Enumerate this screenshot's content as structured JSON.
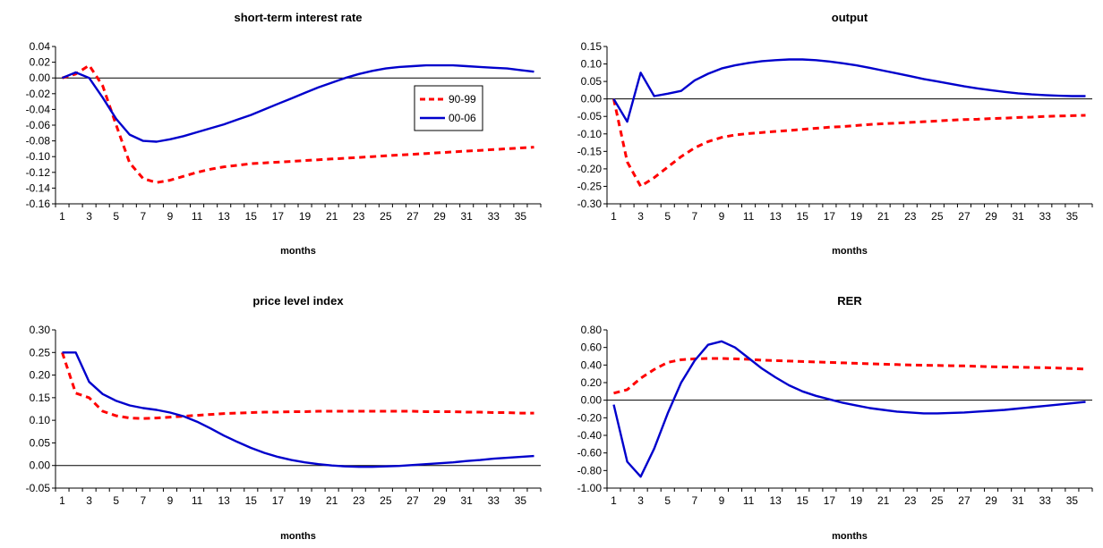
{
  "colors": {
    "s9099": "#ff0000",
    "s0006": "#0000cc"
  },
  "legend": {
    "items": [
      "90-99",
      "00-06"
    ]
  },
  "chart_data": [
    {
      "type": "line",
      "title": "short-term interest rate",
      "xlabel": "months",
      "ylabel": "",
      "ylim": [
        -0.16,
        0.04
      ],
      "yticks": [
        "0.04",
        "0.02",
        "0.00",
        "-0.02",
        "-0.04",
        "-0.06",
        "-0.08",
        "-0.10",
        "-0.12",
        "-0.14",
        "-0.16"
      ],
      "xticks": [
        "1",
        "3",
        "5",
        "7",
        "9",
        "11",
        "13",
        "15",
        "17",
        "19",
        "21",
        "23",
        "25",
        "27",
        "29",
        "31",
        "33",
        "35"
      ],
      "legend_position": "upper-right",
      "series": [
        {
          "name": "90-99",
          "style": "dashed",
          "values": [
            0.0,
            0.005,
            0.016,
            -0.01,
            -0.06,
            -0.108,
            -0.128,
            -0.133,
            -0.13,
            -0.125,
            -0.12,
            -0.116,
            -0.113,
            -0.111,
            -0.109,
            -0.108,
            -0.107,
            -0.106,
            -0.105,
            -0.104,
            -0.103,
            -0.102,
            -0.101,
            -0.1,
            -0.099,
            -0.098,
            -0.097,
            -0.096,
            -0.095,
            -0.094,
            -0.093,
            -0.092,
            -0.091,
            -0.09,
            -0.089,
            -0.088
          ]
        },
        {
          "name": "00-06",
          "style": "solid",
          "values": [
            0.0,
            0.007,
            0.0,
            -0.025,
            -0.052,
            -0.072,
            -0.08,
            -0.081,
            -0.078,
            -0.074,
            -0.069,
            -0.064,
            -0.059,
            -0.053,
            -0.047,
            -0.04,
            -0.033,
            -0.026,
            -0.019,
            -0.012,
            -0.006,
            0.0,
            0.005,
            0.009,
            0.012,
            0.014,
            0.015,
            0.016,
            0.016,
            0.016,
            0.015,
            0.014,
            0.013,
            0.012,
            0.01,
            0.008
          ]
        }
      ]
    },
    {
      "type": "line",
      "title": "output",
      "xlabel": "months",
      "ylabel": "",
      "ylim": [
        -0.3,
        0.15
      ],
      "yticks": [
        "0.15",
        "0.10",
        "0.05",
        "0.00",
        "-0.05",
        "-0.10",
        "-0.15",
        "-0.20",
        "-0.25",
        "-0.30"
      ],
      "xticks": [
        "1",
        "3",
        "5",
        "7",
        "9",
        "11",
        "13",
        "15",
        "17",
        "19",
        "21",
        "23",
        "25",
        "27",
        "29",
        "31",
        "33",
        "35"
      ],
      "series": [
        {
          "name": "90-99",
          "style": "dashed",
          "values": [
            0.0,
            -0.18,
            -0.25,
            -0.225,
            -0.195,
            -0.165,
            -0.14,
            -0.122,
            -0.11,
            -0.103,
            -0.099,
            -0.096,
            -0.093,
            -0.09,
            -0.087,
            -0.084,
            -0.081,
            -0.079,
            -0.076,
            -0.073,
            -0.071,
            -0.069,
            -0.067,
            -0.065,
            -0.063,
            -0.061,
            -0.059,
            -0.058,
            -0.056,
            -0.055,
            -0.053,
            -0.052,
            -0.05,
            -0.049,
            -0.048,
            -0.047
          ]
        },
        {
          "name": "00-06",
          "style": "solid",
          "values": [
            0.0,
            -0.065,
            0.075,
            0.008,
            0.015,
            0.023,
            0.053,
            0.072,
            0.087,
            0.096,
            0.103,
            0.108,
            0.111,
            0.113,
            0.113,
            0.111,
            0.107,
            0.102,
            0.096,
            0.089,
            0.081,
            0.073,
            0.065,
            0.057,
            0.05,
            0.043,
            0.036,
            0.03,
            0.025,
            0.02,
            0.016,
            0.013,
            0.011,
            0.009,
            0.008,
            0.008
          ]
        }
      ]
    },
    {
      "type": "line",
      "title": "price level index",
      "xlabel": "months",
      "ylabel": "",
      "ylim": [
        -0.05,
        0.3
      ],
      "yticks": [
        "0.30",
        "0.25",
        "0.20",
        "0.15",
        "0.10",
        "0.05",
        "0.00",
        "-0.05"
      ],
      "xticks": [
        "1",
        "3",
        "5",
        "7",
        "9",
        "11",
        "13",
        "15",
        "17",
        "19",
        "21",
        "23",
        "25",
        "27",
        "29",
        "31",
        "33",
        "35"
      ],
      "series": [
        {
          "name": "90-99",
          "style": "dashed",
          "values": [
            0.25,
            0.16,
            0.15,
            0.12,
            0.11,
            0.105,
            0.104,
            0.105,
            0.107,
            0.109,
            0.111,
            0.113,
            0.115,
            0.116,
            0.117,
            0.118,
            0.118,
            0.119,
            0.119,
            0.12,
            0.12,
            0.12,
            0.12,
            0.12,
            0.12,
            0.12,
            0.12,
            0.119,
            0.119,
            0.119,
            0.118,
            0.118,
            0.117,
            0.117,
            0.116,
            0.116
          ]
        },
        {
          "name": "00-06",
          "style": "solid",
          "values": [
            0.25,
            0.25,
            0.185,
            0.158,
            0.143,
            0.133,
            0.127,
            0.123,
            0.117,
            0.109,
            0.097,
            0.082,
            0.066,
            0.052,
            0.039,
            0.028,
            0.019,
            0.012,
            0.007,
            0.003,
            0.0,
            -0.002,
            -0.003,
            -0.003,
            -0.002,
            -0.001,
            0.001,
            0.003,
            0.005,
            0.007,
            0.01,
            0.012,
            0.015,
            0.017,
            0.019,
            0.021
          ]
        }
      ]
    },
    {
      "type": "line",
      "title": "RER",
      "xlabel": "months",
      "ylabel": "",
      "ylim": [
        -1.0,
        0.8
      ],
      "yticks": [
        "0.80",
        "0.60",
        "0.40",
        "0.20",
        "0.00",
        "-0.20",
        "-0.40",
        "-0.60",
        "-0.80",
        "-1.00"
      ],
      "xticks": [
        "1",
        "3",
        "5",
        "7",
        "9",
        "11",
        "13",
        "15",
        "17",
        "19",
        "21",
        "23",
        "25",
        "27",
        "29",
        "31",
        "33",
        "35"
      ],
      "series": [
        {
          "name": "90-99",
          "style": "dashed",
          "values": [
            0.08,
            0.12,
            0.25,
            0.35,
            0.43,
            0.46,
            0.47,
            0.475,
            0.475,
            0.47,
            0.465,
            0.455,
            0.45,
            0.445,
            0.44,
            0.435,
            0.43,
            0.425,
            0.42,
            0.415,
            0.41,
            0.405,
            0.4,
            0.398,
            0.395,
            0.392,
            0.39,
            0.385,
            0.38,
            0.378,
            0.375,
            0.372,
            0.37,
            0.365,
            0.36,
            0.355
          ]
        },
        {
          "name": "00-06",
          "style": "solid",
          "values": [
            -0.05,
            -0.7,
            -0.87,
            -0.55,
            -0.15,
            0.2,
            0.45,
            0.63,
            0.67,
            0.6,
            0.48,
            0.36,
            0.26,
            0.17,
            0.1,
            0.05,
            0.01,
            -0.03,
            -0.06,
            -0.09,
            -0.11,
            -0.13,
            -0.14,
            -0.15,
            -0.15,
            -0.145,
            -0.14,
            -0.13,
            -0.12,
            -0.11,
            -0.095,
            -0.08,
            -0.065,
            -0.05,
            -0.035,
            -0.02
          ]
        }
      ]
    }
  ]
}
